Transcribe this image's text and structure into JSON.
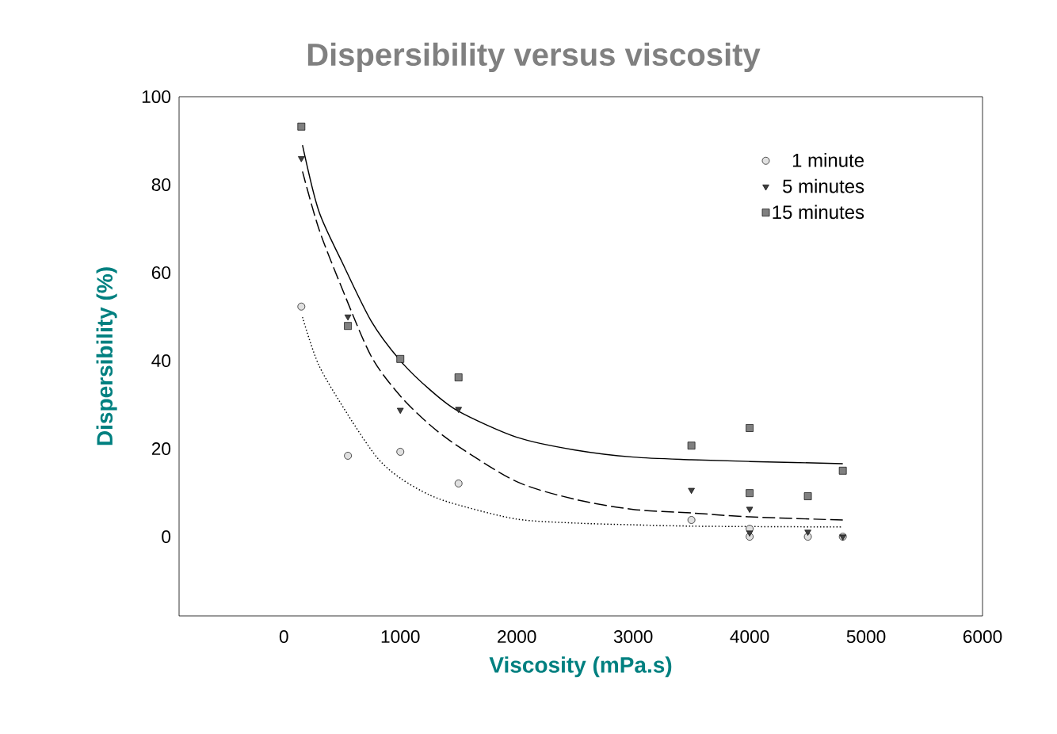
{
  "chart_data": {
    "type": "scatter",
    "title": "Dispersibility versus viscosity",
    "xlabel": "Viscosity (mPa.s)",
    "ylabel": "Dispersibility (%)",
    "xlim": [
      -900,
      6000
    ],
    "ylim": [
      -18,
      100
    ],
    "xticks": [
      0,
      1000,
      2000,
      3000,
      4000,
      5000,
      6000
    ],
    "yticks": [
      0,
      20,
      40,
      60,
      80,
      100
    ],
    "grid": false,
    "legend": "top right",
    "series": [
      {
        "name": "1 minute",
        "marker": "circle",
        "color": "#e0e0e0",
        "x": [
          150,
          550,
          1000,
          1500,
          3500,
          4000,
          4000,
          4500,
          4800
        ],
        "values": [
          52.3,
          18.4,
          19.3,
          12.1,
          3.8,
          1.8,
          0,
          0,
          0
        ]
      },
      {
        "name": "5 minutes",
        "marker": "triangle",
        "color": "#404040",
        "x": [
          150,
          550,
          1000,
          1500,
          3500,
          4000,
          4000,
          4500,
          4800
        ],
        "values": [
          86,
          50,
          28.8,
          29,
          10.6,
          6.3,
          0.9,
          1.1,
          0
        ]
      },
      {
        "name": "15 minutes",
        "marker": "square",
        "color": "#808080",
        "x": [
          150,
          550,
          1000,
          1500,
          3500,
          4000,
          4000,
          4500,
          4800
        ],
        "values": [
          93.2,
          47.9,
          40.4,
          36.2,
          20.7,
          24.7,
          9.9,
          9.2,
          15
        ]
      },
      {
        "type": "line",
        "line_style": "dotted",
        "marker": "none",
        "color": "#000000",
        "x": [
          160,
          300,
          550,
          800,
          1000,
          1250,
          1500,
          2000,
          2500,
          3000,
          3500,
          4000,
          4800
        ],
        "values": [
          49.9,
          39,
          27.7,
          18,
          13.3,
          9.5,
          7.2,
          4,
          3.1,
          2.7,
          2.4,
          2.3,
          2.2
        ]
      },
      {
        "type": "line",
        "line_style": "dashed",
        "marker": "none",
        "color": "#000000",
        "x": [
          160,
          300,
          500,
          750,
          1000,
          1250,
          1500,
          2000,
          2500,
          3000,
          3500,
          4000,
          4800
        ],
        "values": [
          83,
          70,
          56.4,
          41,
          32,
          25.5,
          20.5,
          12.5,
          8.5,
          6.2,
          5.4,
          4.5,
          3.8
        ]
      },
      {
        "type": "line",
        "line_style": "solid",
        "marker": "none",
        "color": "#000000",
        "x": [
          160,
          300,
          500,
          750,
          1000,
          1250,
          1500,
          2000,
          2500,
          3000,
          3500,
          4000,
          4800
        ],
        "values": [
          89,
          74,
          62.4,
          49,
          40,
          33.5,
          28.5,
          22.6,
          19.7,
          18.1,
          17.5,
          17.1,
          16.6
        ]
      }
    ]
  }
}
